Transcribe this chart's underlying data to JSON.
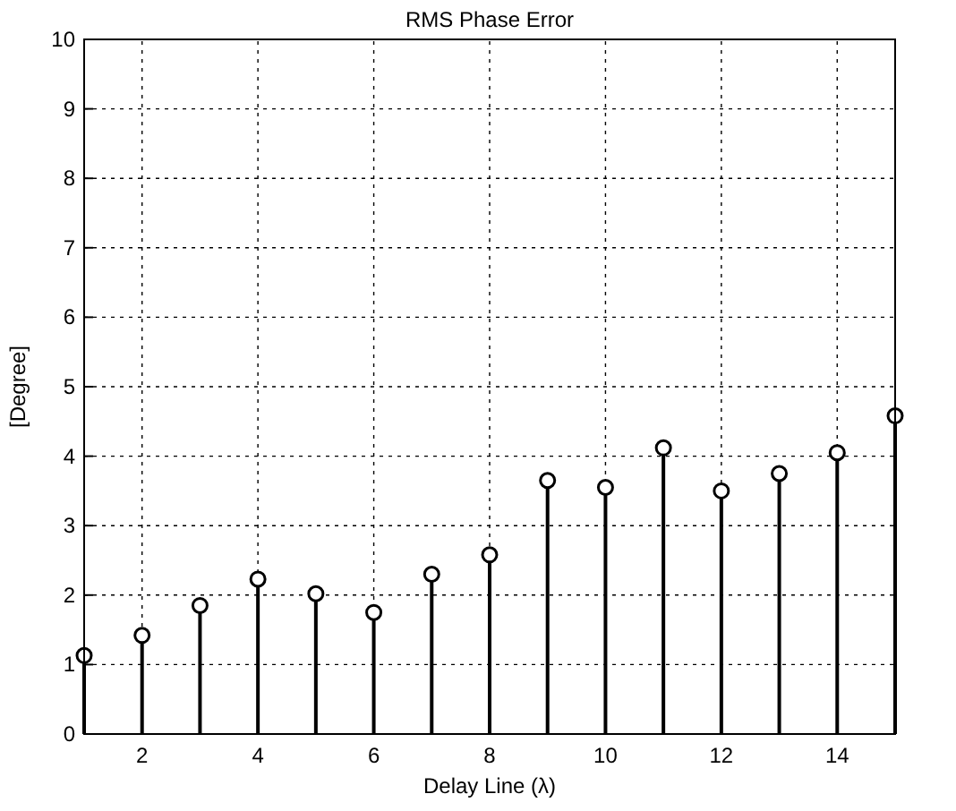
{
  "chart_data": {
    "type": "lollipop",
    "title": "RMS Phase Error",
    "xlabel": "Delay Line (λ)",
    "ylabel": "[Degree]",
    "x": [
      1,
      2,
      3,
      4,
      5,
      6,
      7,
      8,
      9,
      10,
      11,
      12,
      13,
      14,
      15
    ],
    "values": [
      1.13,
      1.42,
      1.85,
      2.23,
      2.02,
      1.75,
      2.3,
      2.58,
      3.65,
      3.55,
      4.12,
      3.5,
      3.75,
      4.05,
      4.58
    ],
    "color": "#000000",
    "xlim": [
      1,
      15
    ],
    "xticks": [
      2,
      4,
      6,
      8,
      10,
      12,
      14
    ],
    "ylim": [
      0,
      10
    ],
    "yticks": [
      0,
      1,
      2,
      3,
      4,
      5,
      6,
      7,
      8,
      9,
      10
    ],
    "grid": true,
    "marker": "circle",
    "line_style": "solid"
  }
}
